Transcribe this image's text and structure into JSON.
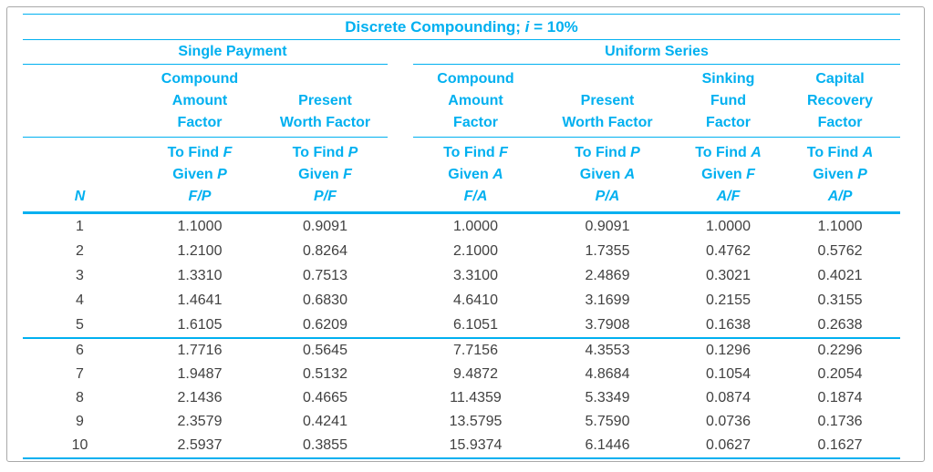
{
  "page": {
    "title_prefix": "Discrete Compounding; ",
    "title_var": "i",
    "title_suffix": " = 10%"
  },
  "colors": {
    "accent": "#00b0f0",
    "data_text": "#414141",
    "frame_border": "#a9a9a9"
  },
  "chart_data": {
    "type": "table",
    "title": "Discrete Compounding; i = 10%",
    "groups": [
      {
        "label": "Single Payment",
        "columns": [
          "F/P",
          "P/F"
        ]
      },
      {
        "label": "Uniform Series",
        "columns": [
          "F/A",
          "P/A",
          "A/F",
          "A/P"
        ]
      }
    ],
    "n_column": {
      "header": "N"
    },
    "labels": {
      "to_find": "To Find",
      "given": "Given"
    },
    "factor_columns": [
      {
        "group": "Single Payment",
        "name_lines": [
          "Compound",
          "Amount",
          "Factor"
        ],
        "to_find": "F",
        "given": "P",
        "symbol": "F/P"
      },
      {
        "group": "Single Payment",
        "name_lines": [
          "Present",
          "Worth Factor"
        ],
        "to_find": "P",
        "given": "F",
        "symbol": "P/F"
      },
      {
        "group": "Uniform Series",
        "name_lines": [
          "Compound",
          "Amount",
          "Factor"
        ],
        "to_find": "F",
        "given": "A",
        "symbol": "F/A"
      },
      {
        "group": "Uniform Series",
        "name_lines": [
          "Present",
          "Worth Factor"
        ],
        "to_find": "P",
        "given": "A",
        "symbol": "P/A"
      },
      {
        "group": "Uniform Series",
        "name_lines": [
          "Sinking",
          "Fund",
          "Factor"
        ],
        "to_find": "A",
        "given": "F",
        "symbol": "A/F"
      },
      {
        "group": "Uniform Series",
        "name_lines": [
          "Capital",
          "Recovery",
          "Factor"
        ],
        "to_find": "A",
        "given": "P",
        "symbol": "A/P"
      }
    ],
    "row_group_break_after": 5,
    "rows": [
      {
        "n": "1",
        "values": [
          "1.1000",
          "0.9091",
          "1.0000",
          "0.9091",
          "1.0000",
          "1.1000"
        ]
      },
      {
        "n": "2",
        "values": [
          "1.2100",
          "0.8264",
          "2.1000",
          "1.7355",
          "0.4762",
          "0.5762"
        ]
      },
      {
        "n": "3",
        "values": [
          "1.3310",
          "0.7513",
          "3.3100",
          "2.4869",
          "0.3021",
          "0.4021"
        ]
      },
      {
        "n": "4",
        "values": [
          "1.4641",
          "0.6830",
          "4.6410",
          "3.1699",
          "0.2155",
          "0.3155"
        ]
      },
      {
        "n": "5",
        "values": [
          "1.6105",
          "0.6209",
          "6.1051",
          "3.7908",
          "0.1638",
          "0.2638"
        ]
      },
      {
        "n": "6",
        "values": [
          "1.7716",
          "0.5645",
          "7.7156",
          "4.3553",
          "0.1296",
          "0.2296"
        ]
      },
      {
        "n": "7",
        "values": [
          "1.9487",
          "0.5132",
          "9.4872",
          "4.8684",
          "0.1054",
          "0.2054"
        ]
      },
      {
        "n": "8",
        "values": [
          "2.1436",
          "0.4665",
          "11.4359",
          "5.3349",
          "0.0874",
          "0.1874"
        ]
      },
      {
        "n": "9",
        "values": [
          "2.3579",
          "0.4241",
          "13.5795",
          "5.7590",
          "0.0736",
          "0.1736"
        ]
      },
      {
        "n": "10",
        "values": [
          "2.5937",
          "0.3855",
          "15.9374",
          "6.1446",
          "0.0627",
          "0.1627"
        ]
      }
    ]
  }
}
